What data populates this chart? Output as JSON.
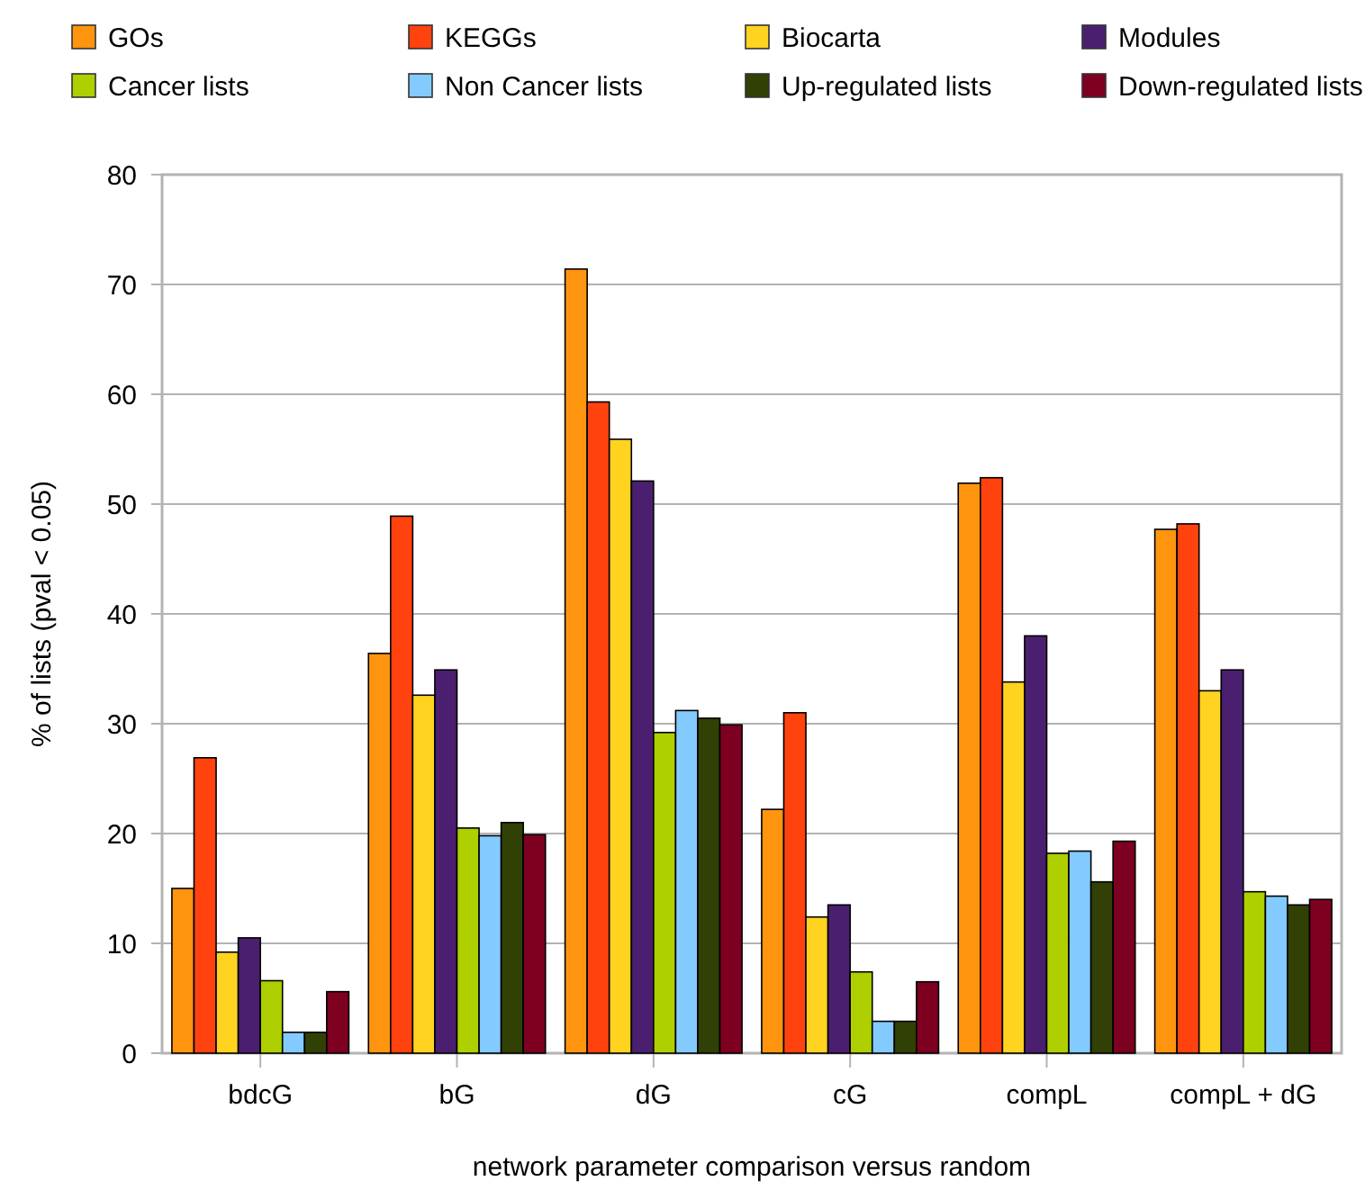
{
  "chart_data": {
    "type": "bar",
    "xlabel": "network parameter comparison versus random",
    "ylabel": "% of lists (pval < 0.05)",
    "categories": [
      "bdcG",
      "bG",
      "dG",
      "cG",
      "compL",
      "compL + dG"
    ],
    "series": [
      {
        "name": "GOs",
        "color": "#ff950e",
        "values": [
          15.0,
          36.4,
          71.4,
          22.2,
          51.9,
          47.7
        ]
      },
      {
        "name": "KEGGs",
        "color": "#ff420e",
        "values": [
          26.9,
          48.9,
          59.3,
          31.0,
          52.4,
          48.2
        ]
      },
      {
        "name": "Biocarta",
        "color": "#ffd320",
        "values": [
          9.2,
          32.6,
          55.9,
          12.4,
          33.8,
          33.0
        ]
      },
      {
        "name": "Modules",
        "color": "#4b1f6f",
        "values": [
          10.5,
          34.9,
          52.1,
          13.5,
          38.0,
          34.9
        ]
      },
      {
        "name": "Cancer lists",
        "color": "#aecf00",
        "values": [
          6.6,
          20.5,
          29.2,
          7.4,
          18.2,
          14.7
        ]
      },
      {
        "name": "Non Cancer lists",
        "color": "#83caff",
        "values": [
          1.9,
          19.8,
          31.2,
          2.9,
          18.4,
          14.3
        ]
      },
      {
        "name": "Up-regulated lists",
        "color": "#314004",
        "values": [
          1.9,
          21.0,
          30.5,
          2.9,
          15.6,
          13.5
        ]
      },
      {
        "name": "Down-regulated lists",
        "color": "#7e0021",
        "values": [
          5.6,
          19.9,
          29.9,
          6.5,
          19.3,
          14.0
        ]
      }
    ],
    "ylim": [
      0,
      80
    ],
    "yticks": [
      0,
      10,
      20,
      30,
      40,
      50,
      60,
      70,
      80
    ],
    "grid": "y",
    "legend": "top"
  }
}
